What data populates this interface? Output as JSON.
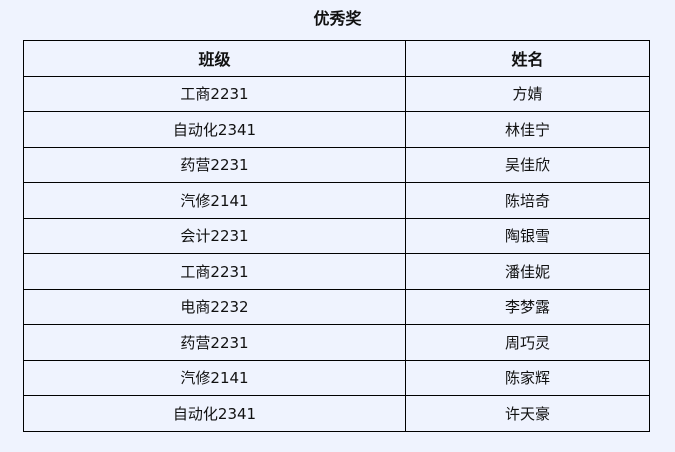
{
  "title": "优秀奖",
  "headers": [
    "班级",
    "姓名"
  ],
  "rows": [
    [
      "工商2231",
      "方婧"
    ],
    [
      "自动化2341",
      "林佳宁"
    ],
    [
      "药营2231",
      "吴佳欣"
    ],
    [
      "汽修2141",
      "陈培奇"
    ],
    [
      "会计2231",
      "陶银雪"
    ],
    [
      "工商2231",
      "潘佳妮"
    ],
    [
      "电商2232",
      "李梦露"
    ],
    [
      "药营2231",
      "周巧灵"
    ],
    [
      "汽修2141",
      "陈家辉"
    ],
    [
      "自动化2341",
      "许天豪"
    ]
  ]
}
